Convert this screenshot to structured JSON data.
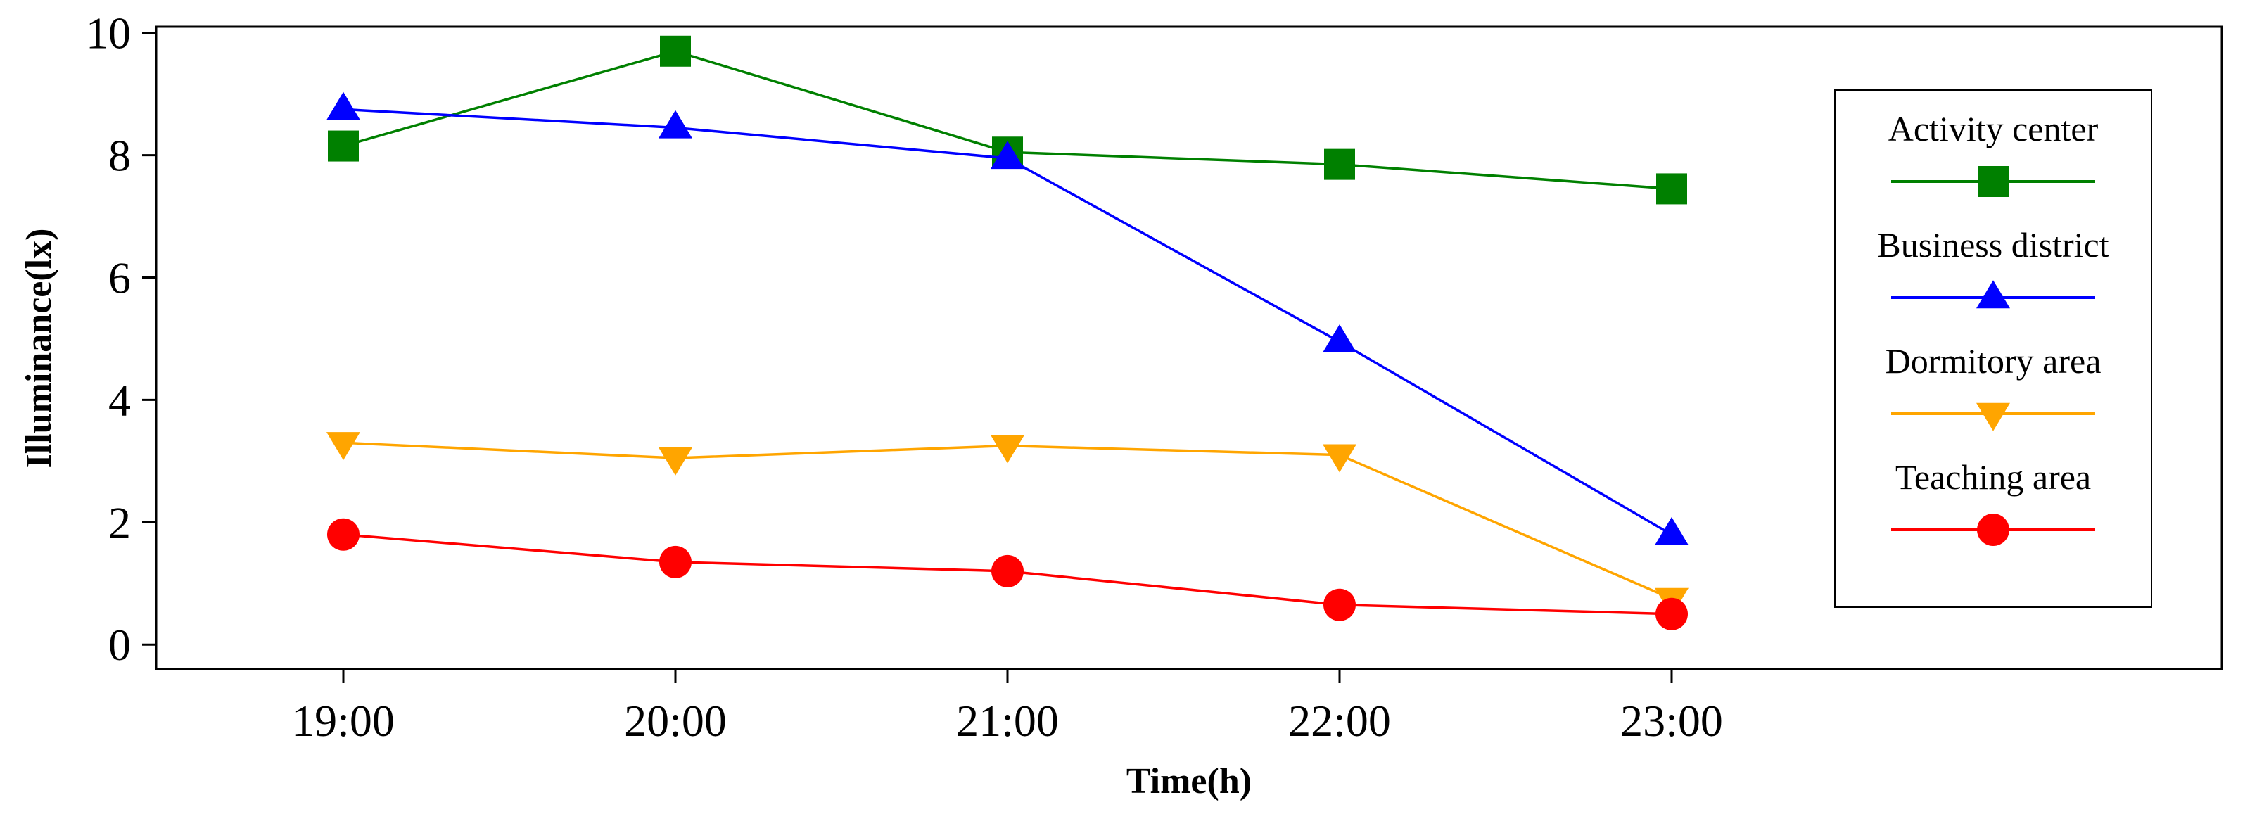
{
  "chart_data": {
    "type": "line",
    "title": "",
    "xlabel": "Time(h)",
    "ylabel": "Illuminance(lx)",
    "categories": [
      "19:00",
      "20:00",
      "21:00",
      "22:00",
      "23:00"
    ],
    "ylim": [
      -0.4,
      10.1
    ],
    "yticks": [
      0,
      2,
      4,
      6,
      8,
      10
    ],
    "grid": false,
    "legend_position": "right",
    "series": [
      {
        "name": "Activity center",
        "color": "#008000",
        "marker": "square",
        "values": [
          8.15,
          9.7,
          8.05,
          7.85,
          7.45
        ]
      },
      {
        "name": "Business district",
        "color": "#0000ff",
        "marker": "triangle-up",
        "values": [
          8.75,
          8.45,
          7.95,
          4.95,
          1.8
        ]
      },
      {
        "name": "Dormitory area",
        "color": "#ffa500",
        "marker": "triangle-down",
        "values": [
          3.3,
          3.05,
          3.25,
          3.1,
          0.75
        ]
      },
      {
        "name": "Teaching area",
        "color": "#ff0000",
        "marker": "circle",
        "values": [
          1.8,
          1.35,
          1.2,
          0.65,
          0.5
        ]
      }
    ]
  }
}
